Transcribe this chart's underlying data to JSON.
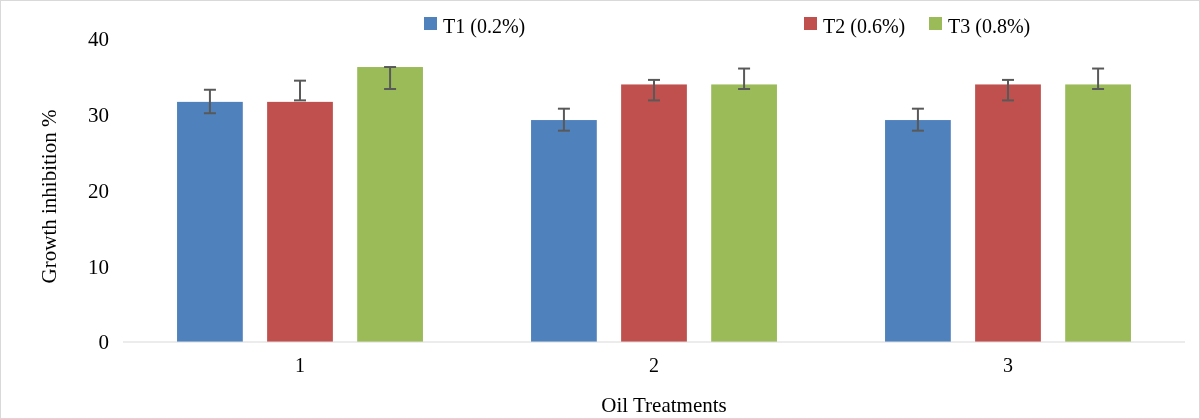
{
  "chart_data": {
    "type": "bar",
    "xlabel": "Oil Treatments",
    "ylabel": "Growth inhibition %",
    "categories": [
      "1",
      "2",
      "3"
    ],
    "series": [
      {
        "name": "T1 (0.2%)",
        "color": "#4f81bd",
        "values": [
          31.7,
          29.3,
          29.3
        ],
        "errors": [
          [
            30.2,
            33.3
          ],
          [
            27.9,
            30.8
          ],
          [
            27.9,
            30.8
          ]
        ]
      },
      {
        "name": "T2 (0.6%)",
        "color": "#c0504d",
        "values": [
          31.7,
          34.0,
          34.0
        ],
        "errors": [
          [
            31.9,
            34.5
          ],
          [
            31.9,
            34.6
          ],
          [
            31.9,
            34.6
          ]
        ]
      },
      {
        "name": "T3 (0.8%)",
        "color": "#9bbb59",
        "values": [
          36.3,
          34.0,
          34.0
        ],
        "errors": [
          [
            33.4,
            36.3
          ],
          [
            33.4,
            36.1
          ],
          [
            33.4,
            36.1
          ]
        ]
      }
    ],
    "ylim": [
      0,
      40
    ],
    "yticks": [
      0,
      10,
      20,
      30,
      40
    ],
    "legend": "top right"
  }
}
